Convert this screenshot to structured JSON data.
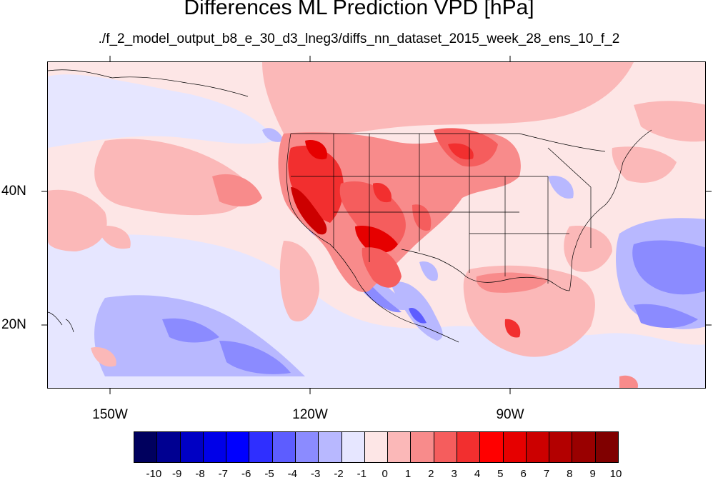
{
  "title": "Differences ML Prediction VPD [hPa]",
  "subtitle": "./f_2_model_output_b8_e_30_d3_lneg3/diffs_nn_dataset_2015_week_28_ens_10_f_2",
  "map": {
    "lat_ticks": [
      "40N",
      "20N"
    ],
    "lon_ticks": [
      "150W",
      "120W",
      "90W"
    ]
  },
  "colorbar": {
    "colors": [
      "#00005e",
      "#000091",
      "#0000c4",
      "#0000e8",
      "#0000ff",
      "#2f2fff",
      "#5d5dff",
      "#8b8bff",
      "#b8b8ff",
      "#e6e6ff",
      "#fde6e6",
      "#fbb8b8",
      "#f88b8b",
      "#f55d5d",
      "#f22f2f",
      "#ff0000",
      "#e60000",
      "#cc0000",
      "#b30000",
      "#990000",
      "#800000"
    ],
    "labels": [
      "-10",
      "-9",
      "-8",
      "-7",
      "-6",
      "-5",
      "-4",
      "-3",
      "-2",
      "-1",
      "0",
      "1",
      "2",
      "3",
      "4",
      "5",
      "6",
      "7",
      "8",
      "9",
      "10"
    ]
  }
}
